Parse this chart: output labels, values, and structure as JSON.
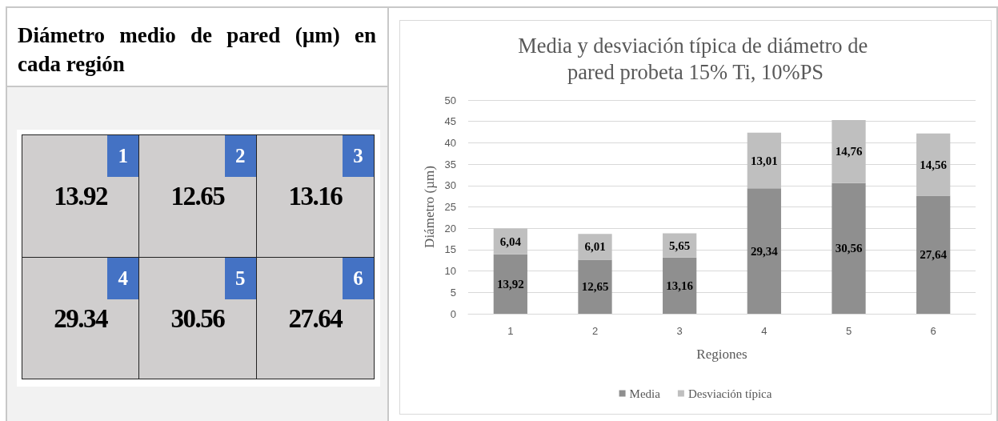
{
  "chart_data": [
    {
      "type": "other",
      "title": "Diámetro medio de pared (µm) en cada región",
      "categories": [
        "1",
        "2",
        "3",
        "4",
        "5",
        "6"
      ],
      "values": [
        13.92,
        12.65,
        13.16,
        29.34,
        30.56,
        27.64
      ],
      "color": "#d0cece",
      "data_labels": true
    },
    {
      "type": "bar",
      "title": "Media y desviación típica de diámetro de pared probeta 15% Ti, 10%PS",
      "categories": [
        "1",
        "2",
        "3",
        "4",
        "5",
        "6"
      ],
      "series": [
        {
          "name": "Media",
          "color": "#8f8f8f",
          "values": [
            13.92,
            12.65,
            13.16,
            29.34,
            30.56,
            27.64
          ],
          "value_labels": [
            "13,92",
            "12,65",
            "13,16",
            "29,34",
            "30,56",
            "27,64"
          ]
        },
        {
          "name": "Desviación típica",
          "color": "#bfbfbf",
          "values": [
            6.04,
            6.01,
            5.65,
            13.01,
            14.76,
            14.56
          ],
          "value_labels": [
            "6,04",
            "6,01",
            "5,65",
            "13,01",
            "14,76",
            "14,56"
          ]
        }
      ],
      "stacked": true,
      "ylim": [
        0,
        50
      ],
      "yticks": [
        0,
        5,
        10,
        15,
        20,
        25,
        30,
        35,
        40,
        45,
        50
      ],
      "xlabel": "Regiones",
      "ylabel": "Diámetro (µm)",
      "grid": "y",
      "legend": "bottom"
    }
  ]
}
